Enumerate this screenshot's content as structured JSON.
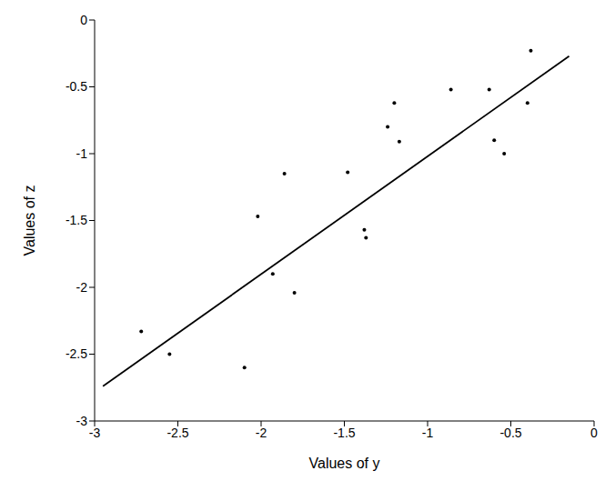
{
  "chart_data": {
    "type": "scatter",
    "x_label": "Values of y",
    "y_label": "Values of z",
    "xlim": [
      -3,
      0
    ],
    "xticks": [
      -3,
      -2.5,
      -2,
      -1.5,
      -1,
      -0.5,
      0
    ],
    "ylim": [
      -3,
      0
    ],
    "yticks": [
      -3,
      -2.5,
      -2,
      -1.5,
      -1,
      -0.5,
      0
    ],
    "grid": false,
    "series": [
      {
        "type": "scatter",
        "marker": "dot",
        "color": "#000000",
        "x": [
          -2.72,
          -2.55,
          -2.1,
          -2.02,
          -1.93,
          -1.86,
          -1.8,
          -1.48,
          -1.38,
          -1.37,
          -1.24,
          -1.2,
          -1.17,
          -0.86,
          -0.63,
          -0.6,
          -0.54,
          -0.4,
          -0.38
        ],
        "values": [
          -2.33,
          -2.5,
          -2.6,
          -1.47,
          -1.9,
          -1.15,
          -2.04,
          -1.14,
          -1.57,
          -1.63,
          -0.8,
          -0.62,
          -0.91,
          -0.52,
          -0.52,
          -0.9,
          -1.0,
          -0.62,
          -0.23
        ]
      },
      {
        "type": "line",
        "line_style": "solid",
        "color": "#000000",
        "x": [
          -2.95,
          -0.15
        ],
        "values": [
          -2.74,
          -0.27
        ]
      }
    ]
  }
}
